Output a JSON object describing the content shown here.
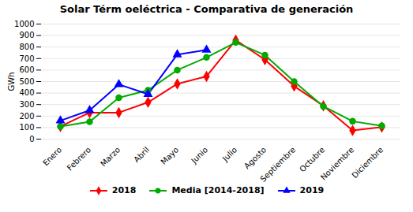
{
  "chart_data": {
    "type": "line",
    "title": "Solar Térm oeléctrica - Comparativa de generación",
    "y_label": "GWh",
    "categories": [
      "Enero",
      "Febrero",
      "Marzo",
      "Abril",
      "Mayo",
      "Junio",
      "Julio",
      "Agosto",
      "Septiembre",
      "Octubre",
      "Noviembre",
      "Diciembre"
    ],
    "series": [
      {
        "name": "2018",
        "color": "#FF0000",
        "marker": "diamond",
        "values": [
          110,
          230,
          230,
          320,
          480,
          545,
          860,
          690,
          460,
          290,
          75,
          105
        ]
      },
      {
        "name": "Media [2014-2018]",
        "color": "#00AA00",
        "marker": "circle",
        "values": [
          110,
          150,
          360,
          425,
          600,
          710,
          840,
          730,
          500,
          285,
          155,
          115
        ]
      },
      {
        "name": "2019",
        "color": "#0000FF",
        "marker": "triangle",
        "values": [
          160,
          250,
          475,
          390,
          735,
          775,
          null,
          null,
          null,
          null,
          null,
          null
        ]
      }
    ],
    "ylim": [
      0,
      1000
    ],
    "yticks": [
      0,
      100,
      200,
      300,
      400,
      500,
      600,
      700,
      800,
      900,
      1000
    ],
    "grid": true,
    "legend": "bottom"
  }
}
